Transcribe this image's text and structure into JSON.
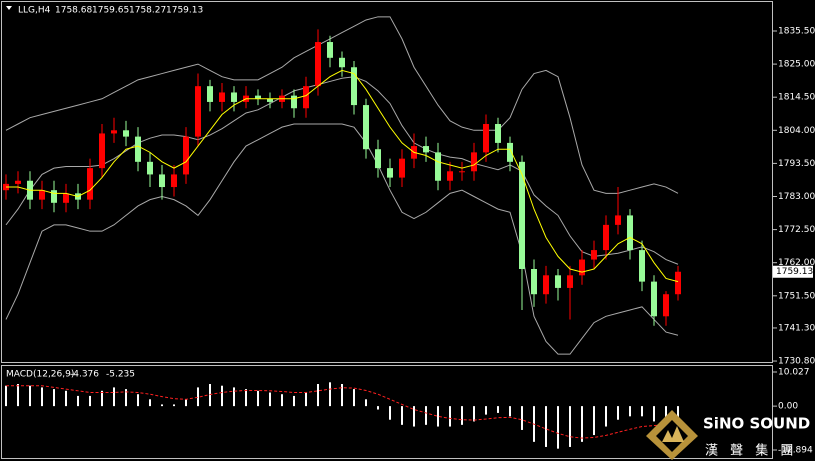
{
  "header": {
    "symbol": "LLG,H4",
    "open": 1758.68,
    "high": 1759.65,
    "low": 1758.27,
    "close": 1759.13
  },
  "logo": {
    "name": "SiNO SOUND",
    "subtitle": "漢 聲 集 團"
  },
  "chart_data": [
    {
      "type": "candlestick",
      "up_color": "#ff0000",
      "down_color": "#98fb98",
      "open": [
        1785,
        1787,
        1788,
        1782,
        1785,
        1781,
        1784,
        1782,
        1792,
        1803,
        1804,
        1802,
        1794,
        1790,
        1786,
        1790,
        1802,
        1818,
        1813,
        1816,
        1813,
        1815,
        1814,
        1813,
        1815,
        1811,
        1818,
        1832,
        1827,
        1824,
        1812,
        1798,
        1792,
        1789,
        1795,
        1799,
        1797,
        1788,
        1791,
        1791,
        1797,
        1806,
        1800,
        1794,
        1760,
        1752,
        1758,
        1754,
        1758,
        1763,
        1766,
        1774,
        1777,
        1766,
        1756,
        1745,
        1752
      ],
      "high": [
        1790,
        1791,
        1791,
        1788,
        1788,
        1787,
        1787,
        1795,
        1806,
        1808,
        1807,
        1805,
        1797,
        1793,
        1793,
        1805,
        1822,
        1820,
        1819,
        1818,
        1818,
        1817,
        1816,
        1817,
        1817,
        1821,
        1836,
        1834,
        1829,
        1826,
        1814,
        1801,
        1795,
        1798,
        1803,
        1802,
        1800,
        1794,
        1794,
        1800,
        1809,
        1808,
        1802,
        1796,
        1763,
        1761,
        1760,
        1761,
        1766,
        1769,
        1777,
        1786,
        1779,
        1769,
        1758,
        1753,
        1761
      ],
      "low": [
        1782,
        1784,
        1779,
        1779,
        1778,
        1778,
        1779,
        1779,
        1789,
        1800,
        1799,
        1791,
        1786,
        1782,
        1783,
        1787,
        1799,
        1810,
        1810,
        1810,
        1811,
        1812,
        1811,
        1811,
        1808,
        1808,
        1815,
        1824,
        1821,
        1809,
        1795,
        1789,
        1786,
        1786,
        1792,
        1794,
        1785,
        1785,
        1788,
        1788,
        1794,
        1797,
        1791,
        1747,
        1748,
        1749,
        1750,
        1744,
        1755,
        1760,
        1763,
        1771,
        1763,
        1753,
        1742,
        1742,
        1750
      ],
      "close": [
        1787,
        1788,
        1782,
        1785,
        1781,
        1784,
        1782,
        1792,
        1803,
        1804,
        1802,
        1794,
        1790,
        1786,
        1790,
        1802,
        1818,
        1813,
        1816,
        1813,
        1815,
        1814,
        1813,
        1815,
        1811,
        1818,
        1832,
        1827,
        1824,
        1812,
        1798,
        1792,
        1789,
        1795,
        1799,
        1797,
        1788,
        1791,
        1791,
        1797,
        1806,
        1800,
        1794,
        1760,
        1752,
        1758,
        1754,
        1758,
        1763,
        1766,
        1774,
        1777,
        1766,
        1756,
        1745,
        1752,
        1759.13
      ],
      "bands": {
        "color": "#a9a9a9",
        "upper": [
          1804,
          1806,
          1808,
          1809,
          1810,
          1811,
          1812,
          1813,
          1814,
          1816,
          1818,
          1820,
          1821,
          1822,
          1823,
          1824,
          1825,
          1823,
          1821,
          1820,
          1820,
          1820,
          1822,
          1824,
          1827,
          1829,
          1831,
          1833,
          1835,
          1837,
          1839,
          1840,
          1840,
          1833,
          1824,
          1818,
          1812,
          1807,
          1805,
          1804,
          1804,
          1804,
          1808,
          1817,
          1822,
          1823,
          1821,
          1808,
          1793,
          1785,
          1784,
          1784,
          1785,
          1786,
          1787,
          1786,
          1784
        ],
        "middle": [
          1774,
          1779,
          1785,
          1790,
          1792,
          1792.5,
          1792.5,
          1792.5,
          1793,
          1795,
          1797.5,
          1800,
          1801.5,
          1802.5,
          1802.5,
          1802,
          1801,
          1802.5,
          1804.5,
          1807,
          1809.5,
          1810.5,
          1812.5,
          1814.5,
          1816.5,
          1817.5,
          1818.5,
          1819.5,
          1820.5,
          1821,
          1819.5,
          1816.5,
          1812.5,
          1805.5,
          1800,
          1798,
          1796.5,
          1795.5,
          1795,
          1793.5,
          1792.5,
          1791.5,
          1793,
          1791,
          1783.5,
          1780,
          1777,
          1770.5,
          1765.5,
          1764,
          1764.5,
          1765,
          1766,
          1767,
          1765.5,
          1763,
          1761.5
        ],
        "lower": [
          1744,
          1752,
          1762,
          1772,
          1774,
          1774,
          1773,
          1772,
          1772,
          1774,
          1777,
          1780,
          1782,
          1783,
          1782,
          1780,
          1777,
          1782,
          1788,
          1794,
          1799,
          1801,
          1803,
          1805,
          1806,
          1806,
          1806,
          1806,
          1806,
          1805,
          1800,
          1793,
          1785,
          1778,
          1776,
          1778,
          1781,
          1784,
          1785,
          1783,
          1781,
          1779,
          1778,
          1765,
          1745,
          1737,
          1733,
          1733,
          1738,
          1743,
          1745,
          1746,
          1747,
          1748,
          1744,
          1740,
          1739
        ]
      },
      "ma": {
        "color": "#ffff00",
        "values": [
          1786,
          1786,
          1785,
          1785,
          1784,
          1784,
          1783,
          1785,
          1789,
          1794,
          1798,
          1799,
          1797,
          1794,
          1792,
          1794,
          1799,
          1804,
          1809,
          1812,
          1814,
          1814,
          1814,
          1814,
          1814,
          1815,
          1818,
          1821,
          1823,
          1822,
          1817,
          1811,
          1805,
          1800,
          1797,
          1796,
          1794,
          1793,
          1792,
          1793,
          1796,
          1798,
          1798,
          1790,
          1779,
          1770,
          1764,
          1760,
          1759,
          1760,
          1764,
          1768,
          1770,
          1768,
          1762,
          1757,
          1756
        ]
      },
      "ylim": [
        1730.5,
        1844.7
      ],
      "yticks": [
        {
          "value": 1835.5,
          "label": "1835.50"
        },
        {
          "value": 1825,
          "label": "1825.00"
        },
        {
          "value": 1814.5,
          "label": "1814.50"
        },
        {
          "value": 1804,
          "label": "1804.00"
        },
        {
          "value": 1793.5,
          "label": "1793.50"
        },
        {
          "value": 1783,
          "label": "1783.00"
        },
        {
          "value": 1772.5,
          "label": "1772.50"
        },
        {
          "value": 1762,
          "label": "1762.00"
        },
        {
          "value": 1751.5,
          "label": "1751.50"
        },
        {
          "value": 1741.3,
          "label": "1741.30"
        },
        {
          "value": 1730.8,
          "label": "1730.80"
        }
      ]
    },
    {
      "type": "macd",
      "title": "MACD(12,26,9)",
      "macd_value": -4.376,
      "signal_value": -5.235,
      "histogram": {
        "color": "#ffffff",
        "values": [
          6,
          6.5,
          6,
          5.5,
          5,
          4.5,
          3,
          3,
          4.5,
          5.5,
          5,
          3.5,
          2,
          0.5,
          0.5,
          2,
          5.5,
          6.5,
          6,
          5.5,
          5,
          4.5,
          4,
          3.5,
          3,
          4,
          6.5,
          7,
          6.5,
          5,
          2,
          -1,
          -4,
          -5.5,
          -6,
          -5.5,
          -6,
          -6,
          -5.5,
          -4.5,
          -2.5,
          -2,
          -3,
          -7,
          -10.5,
          -12,
          -12.5,
          -12,
          -10.5,
          -8.5,
          -6,
          -4,
          -3,
          -3,
          -4.5,
          -4.5,
          -4.376
        ]
      },
      "signal": {
        "color": "#ff2020",
        "values": [
          6,
          6,
          6,
          6,
          5.5,
          5,
          4.5,
          4,
          4,
          4,
          4.2,
          4,
          3.5,
          2.8,
          2.2,
          2,
          2.6,
          3.4,
          4,
          4.4,
          4.6,
          4.6,
          4.5,
          4.3,
          4,
          4,
          4.5,
          5,
          5.4,
          5.3,
          4.6,
          3.5,
          2,
          0.5,
          -1,
          -2,
          -3,
          -3.6,
          -4,
          -4.1,
          -3.8,
          -3.4,
          -3.3,
          -4,
          -5.3,
          -6.7,
          -8,
          -9,
          -9.4,
          -9.2,
          -8.6,
          -7.7,
          -6.8,
          -6,
          -5.7,
          -5.5,
          -5.235
        ]
      },
      "ylim": [
        -15.245,
        11.79
      ],
      "yticks": [
        10.027,
        {
          "value": 0,
          "label": "0.00"
        },
        -12.894
      ]
    }
  ]
}
